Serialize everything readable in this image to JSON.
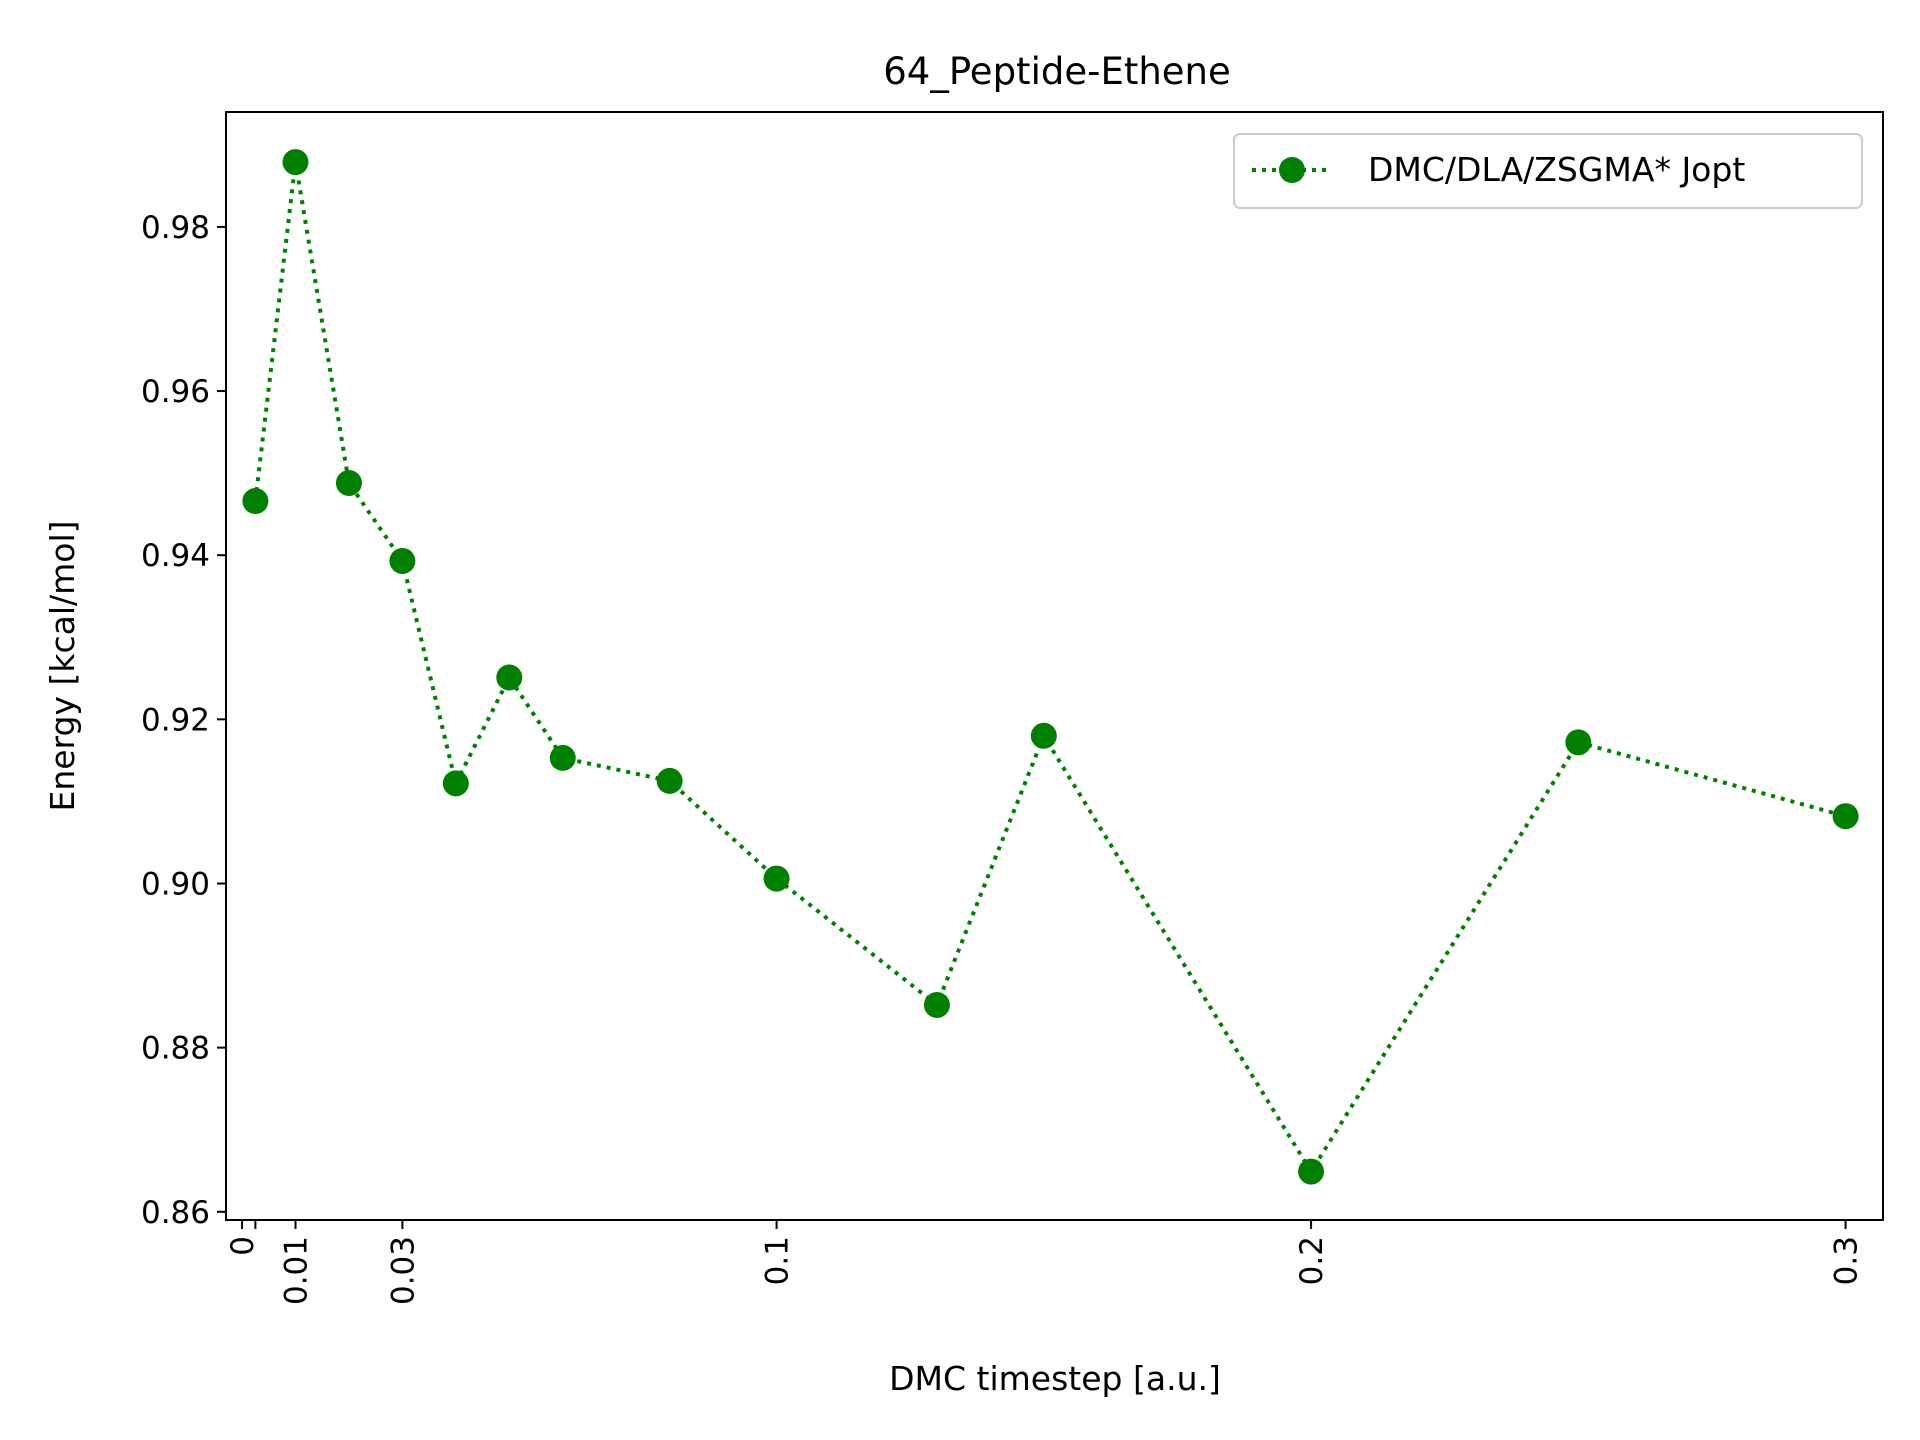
{
  "chart_data": {
    "type": "line",
    "title": "64_Peptide-Ethene",
    "xlabel": "DMC timestep [a.u.]",
    "ylabel": "Energy [kcal/mol]",
    "xlim": [
      -0.003,
      0.307
    ],
    "ylim": [
      0.859,
      0.994
    ],
    "xticks": [
      0,
      0.01,
      0.03,
      0.1,
      0.2,
      0.3
    ],
    "xtick_labels": [
      "0",
      "0.01",
      "0.03",
      "0.1",
      "0.2",
      "0.3"
    ],
    "xticks_minor": [
      0.0025
    ],
    "yticks": [
      0.86,
      0.88,
      0.9,
      0.92,
      0.94,
      0.96,
      0.98
    ],
    "ytick_labels": [
      "0.86",
      "0.88",
      "0.90",
      "0.92",
      "0.94",
      "0.96",
      "0.98"
    ],
    "grid": false,
    "legend_position": "top-right",
    "series": [
      {
        "name": "DMC/DLA/ZSGMA* Jopt",
        "color": "#008000",
        "line_style": "dotted",
        "marker": "circle",
        "x": [
          0.0025,
          0.01,
          0.02,
          0.03,
          0.04,
          0.05,
          0.06,
          0.08,
          0.1,
          0.13,
          0.15,
          0.2,
          0.25,
          0.3
        ],
        "y": [
          0.9466,
          0.9879,
          0.9488,
          0.9393,
          0.9122,
          0.9251,
          0.9153,
          0.9125,
          0.9006,
          0.8852,
          0.918,
          0.8649,
          0.9172,
          0.9082
        ]
      }
    ]
  }
}
